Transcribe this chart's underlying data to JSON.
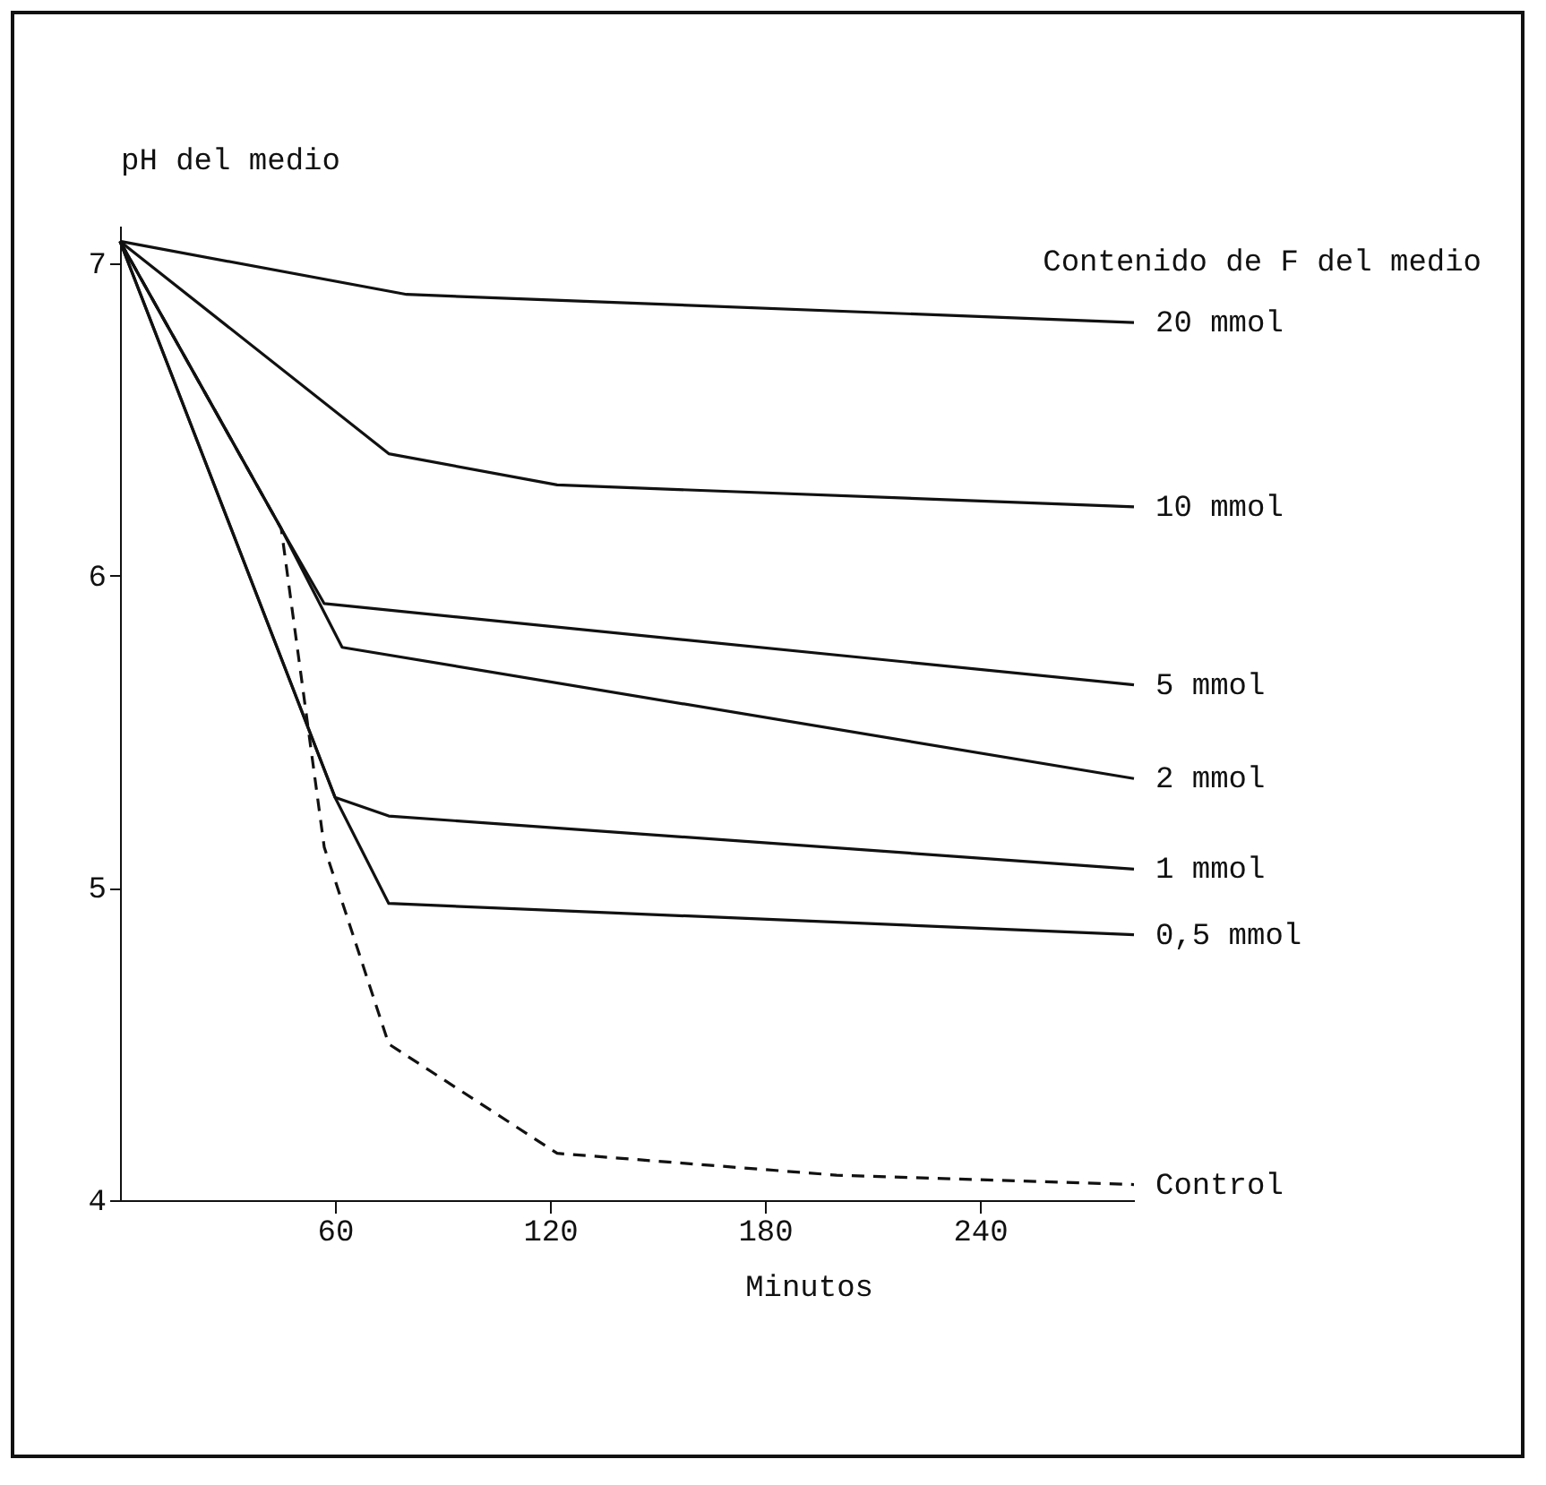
{
  "chart_data": {
    "type": "line",
    "xlabel": "Minutos",
    "ylabel": "pH del medio",
    "legend_title": "Contenido de F del medio",
    "xlim": [
      0,
      283
    ],
    "xticks": [
      60,
      120,
      180,
      240
    ],
    "ylim": [
      4,
      7.12
    ],
    "yticks": [
      4,
      5,
      6,
      7
    ],
    "grid": false,
    "marker": "none",
    "series": [
      {
        "name": "20 mmol",
        "color": "#111111",
        "line_style": "solid",
        "x": [
          0,
          80,
          283
        ],
        "values": [
          7.07,
          6.9,
          6.81
        ]
      },
      {
        "name": "10 mmol",
        "color": "#111111",
        "line_style": "solid",
        "x": [
          0,
          75,
          122,
          283
        ],
        "values": [
          7.07,
          6.39,
          6.29,
          6.22
        ]
      },
      {
        "name": "5 mmol",
        "color": "#111111",
        "line_style": "solid",
        "x": [
          0,
          45,
          57,
          283
        ],
        "values": [
          7.07,
          6.15,
          5.91,
          5.65
        ]
      },
      {
        "name": "2 mmol",
        "color": "#111111",
        "line_style": "solid",
        "x": [
          0,
          45,
          62,
          283
        ],
        "values": [
          7.07,
          6.15,
          5.77,
          5.35
        ]
      },
      {
        "name": "1 mmol",
        "color": "#111111",
        "line_style": "solid",
        "x": [
          0,
          60,
          75,
          283
        ],
        "values": [
          7.07,
          5.29,
          5.23,
          5.06
        ]
      },
      {
        "name": "0,5 mmol",
        "color": "#111111",
        "line_style": "solid",
        "x": [
          0,
          60,
          75,
          283
        ],
        "values": [
          7.07,
          5.29,
          4.95,
          4.85
        ]
      },
      {
        "name": "Control",
        "color": "#111111",
        "line_style": "dashed",
        "x": [
          0,
          45,
          57,
          75,
          122,
          200,
          283
        ],
        "values": [
          7.07,
          6.15,
          5.13,
          4.5,
          4.15,
          4.08,
          4.05
        ]
      }
    ]
  }
}
